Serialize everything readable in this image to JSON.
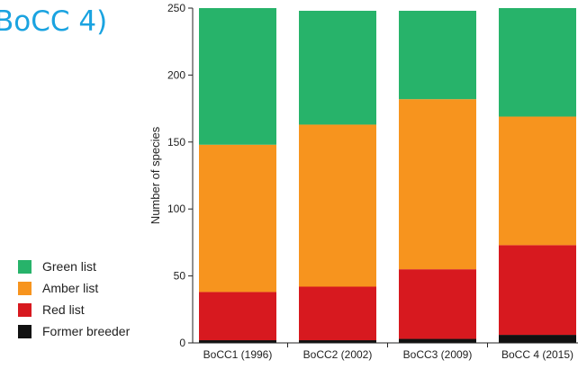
{
  "title": "BoCC 4)",
  "chart_data": {
    "type": "bar",
    "stacked": true,
    "title": "",
    "xlabel": "",
    "ylabel": "Number of species",
    "ylim": [
      0,
      250
    ],
    "yticks": [
      0,
      50,
      100,
      150,
      200,
      250
    ],
    "categories": [
      "BoCC1 (1996)",
      "BoCC2 (2002)",
      "BoCC3 (2009)",
      "BoCC 4 (2015)"
    ],
    "series": [
      {
        "name": "Former breeder",
        "color": "#111111",
        "values": [
          2,
          2,
          3,
          6
        ]
      },
      {
        "name": "Red list",
        "color": "#d7191f",
        "values": [
          36,
          40,
          52,
          67
        ]
      },
      {
        "name": "Amber list",
        "color": "#f7941e",
        "values": [
          110,
          121,
          127,
          96
        ]
      },
      {
        "name": "Green list",
        "color": "#27b36a",
        "values": [
          102,
          85,
          66,
          81
        ]
      }
    ],
    "legend_position": "left",
    "grid": false
  }
}
